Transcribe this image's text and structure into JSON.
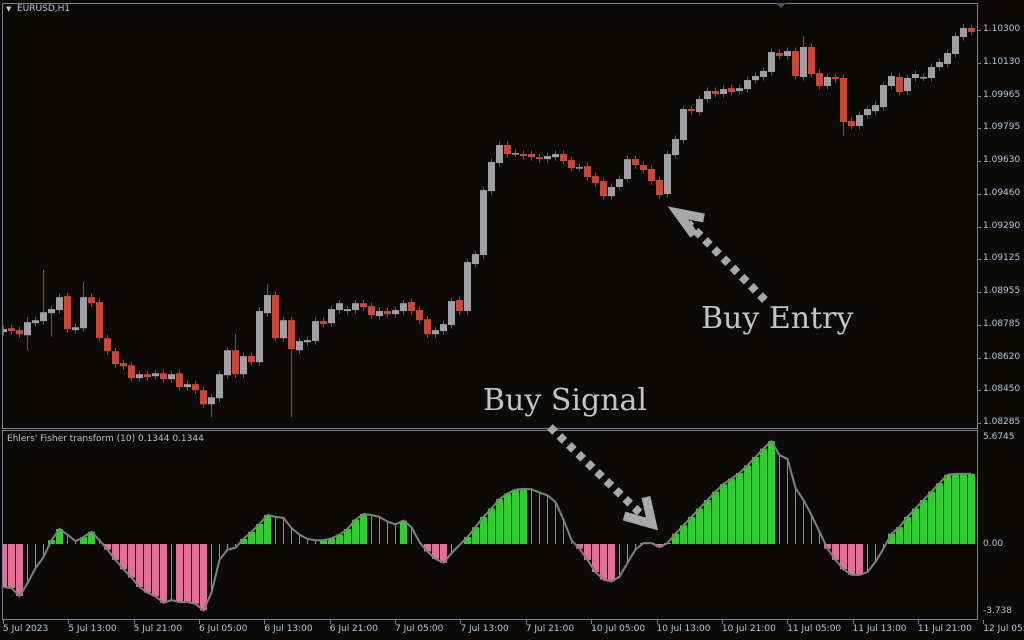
{
  "window": {
    "symbol_title": "EURUSD,H1",
    "menu_icon": "triangle-down-icon"
  },
  "indicator": {
    "title": "Ehlers' Fisher transform (10) 0.1344 0.1344"
  },
  "annotations": {
    "buy_entry": "Buy Entry",
    "buy_signal": "Buy Signal"
  },
  "colors": {
    "bull_candle": "#a0a0a4",
    "bear_candle": "#c8483a",
    "hist_up": "#33cc33",
    "hist_down": "#e07095",
    "signal_line": "#808080",
    "background": "#0c0a09"
  },
  "price_axis": [
    "1.10300",
    "1.10130",
    "1.09965",
    "1.09795",
    "1.09630",
    "1.09460",
    "1.09290",
    "1.09125",
    "1.08955",
    "1.08785",
    "1.08620",
    "1.08450",
    "1.08285"
  ],
  "indicator_axis": {
    "max": "5.6745",
    "zero": "0.00",
    "min": "-3.738"
  },
  "time_axis": [
    "5 Jul 2023",
    "5 Jul 13:00",
    "5 Jul 21:00",
    "6 Jul 05:00",
    "6 Jul 13:00",
    "6 Jul 21:00",
    "7 Jul 05:00",
    "7 Jul 13:00",
    "7 Jul 21:00",
    "10 Jul 05:00",
    "10 Jul 13:00",
    "10 Jul 21:00",
    "11 Jul 05:00",
    "11 Jul 13:00",
    "11 Jul 21:00",
    "12 Jul 05:00"
  ],
  "chart_data": {
    "type": "candlestick",
    "ylim": [
      1.08285,
      1.103
    ],
    "candles_open_close": [
      [
        1.08751,
        1.08766
      ],
      [
        1.08771,
        1.08756
      ],
      [
        1.08761,
        1.0874
      ],
      [
        1.08735,
        1.08802
      ],
      [
        1.08797,
        1.08812
      ],
      [
        1.08807,
        1.08853
      ],
      [
        1.08848,
        1.08869
      ],
      [
        1.08864,
        1.0893
      ],
      [
        1.08935,
        1.08766
      ],
      [
        1.08761,
        1.08776
      ],
      [
        1.08771,
        1.0893
      ],
      [
        1.0893,
        1.08899
      ],
      [
        1.08905,
        1.0872
      ],
      [
        1.0872,
        1.08653
      ],
      [
        1.08653,
        1.08587
      ],
      [
        1.08592,
        1.08576
      ],
      [
        1.08581,
        1.08515
      ],
      [
        1.08515,
        1.08535
      ],
      [
        1.08535,
        1.0852
      ],
      [
        1.08525,
        1.0854
      ],
      [
        1.0854,
        1.0851
      ],
      [
        1.0851,
        1.08535
      ],
      [
        1.0854,
        1.08469
      ],
      [
        1.08469,
        1.08484
      ],
      [
        1.08484,
        1.08453
      ],
      [
        1.08453,
        1.08381
      ],
      [
        1.08381,
        1.08417
      ],
      [
        1.08412,
        1.08535
      ],
      [
        1.0853,
        1.08658
      ],
      [
        1.08658,
        1.08535
      ],
      [
        1.08535,
        1.08628
      ],
      [
        1.08628,
        1.08597
      ],
      [
        1.08597,
        1.08859
      ],
      [
        1.08848,
        1.08941
      ],
      [
        1.08941,
        1.0872
      ],
      [
        1.0872,
        1.08812
      ],
      [
        1.08812,
        1.08664
      ],
      [
        1.08658,
        1.08705
      ],
      [
        1.08699,
        1.0871
      ],
      [
        1.08705,
        1.08807
      ],
      [
        1.08807,
        1.08792
      ],
      [
        1.08797,
        1.08869
      ],
      [
        1.08864,
        1.08899
      ],
      [
        1.08859,
        1.08869
      ],
      [
        1.08864,
        1.08899
      ],
      [
        1.08899,
        1.08879
      ],
      [
        1.08884,
        1.08838
      ],
      [
        1.08833,
        1.08859
      ],
      [
        1.08859,
        1.08843
      ],
      [
        1.08843,
        1.08864
      ],
      [
        1.08859,
        1.08899
      ],
      [
        1.08905,
        1.08859
      ],
      [
        1.08864,
        1.08812
      ],
      [
        1.08817,
        1.0874
      ],
      [
        1.0874,
        1.08761
      ],
      [
        1.08756,
        1.08792
      ],
      [
        1.08787,
        1.0891
      ],
      [
        1.08915,
        1.08859
      ],
      [
        1.08859,
        1.0911
      ],
      [
        1.091,
        1.09151
      ],
      [
        1.09146,
        1.09479
      ],
      [
        1.09474,
        1.09623
      ],
      [
        1.09618,
        1.0971
      ],
      [
        1.0971,
        1.09664
      ],
      [
        1.09666,
        1.09669
      ],
      [
        1.09664,
        1.09654
      ],
      [
        1.09664,
        1.09648
      ],
      [
        1.09648,
        1.09638
      ],
      [
        1.09638,
        1.09654
      ],
      [
        1.09648,
        1.09664
      ],
      [
        1.09664,
        1.09628
      ],
      [
        1.09633,
        1.09592
      ],
      [
        1.09595,
        1.09597
      ],
      [
        1.09602,
        1.09546
      ],
      [
        1.09551,
        1.09515
      ],
      [
        1.09525,
        1.09448
      ],
      [
        1.09448,
        1.09495
      ],
      [
        1.09495,
        1.09536
      ],
      [
        1.09536,
        1.09638
      ],
      [
        1.09638,
        1.09607
      ],
      [
        1.09607,
        1.09582
      ],
      [
        1.09587,
        1.09525
      ],
      [
        1.09531,
        1.09454
      ],
      [
        1.09459,
        1.09664
      ],
      [
        1.09659,
        1.09741
      ],
      [
        1.09736,
        1.09895
      ],
      [
        1.09895,
        1.09884
      ],
      [
        1.09879,
        1.09946
      ],
      [
        1.09946,
        1.09987
      ],
      [
        1.09987,
        1.09972
      ],
      [
        1.09972,
        1.09997
      ],
      [
        1.10002,
        1.09982
      ],
      [
        1.09987,
        1.10002
      ],
      [
        1.09997,
        1.10043
      ],
      [
        1.10043,
        1.10064
      ],
      [
        1.10059,
        1.1009
      ],
      [
        1.10085,
        1.10187
      ],
      [
        1.10182,
        1.10167
      ],
      [
        1.10167,
        1.10192
      ],
      [
        1.10192,
        1.10064
      ],
      [
        1.10059,
        1.10213
      ],
      [
        1.10213,
        1.10074
      ],
      [
        1.10079,
        1.10013
      ],
      [
        1.10013,
        1.10059
      ],
      [
        1.10059,
        1.10049
      ],
      [
        1.10054,
        1.09828
      ],
      [
        1.09833,
        1.09808
      ],
      [
        1.09808,
        1.09864
      ],
      [
        1.09864,
        1.09895
      ],
      [
        1.09884,
        1.09915
      ],
      [
        1.09905,
        1.10018
      ],
      [
        1.10013,
        1.10064
      ],
      [
        1.10059,
        1.09982
      ],
      [
        1.09987,
        1.10054
      ],
      [
        1.10054,
        1.10074
      ],
      [
        1.10057,
        1.10059
      ],
      [
        1.10054,
        1.1011
      ],
      [
        1.1011,
        1.10136
      ],
      [
        1.10126,
        1.10182
      ],
      [
        1.10177,
        1.10269
      ],
      [
        1.10264,
        1.1031
      ],
      [
        1.1031,
        1.1029
      ]
    ],
    "wick_extremes": {
      "3": [
        1.08828,
        1.08658
      ],
      "5": [
        1.09069,
        null
      ],
      "6": [
        null,
        1.08728
      ],
      "10": [
        1.09007,
        null
      ],
      "26": [
        null,
        1.08315
      ],
      "29": [
        1.0874,
        null
      ],
      "33": [
        1.08997,
        null
      ],
      "36": [
        null,
        1.08315
      ],
      "100": [
        1.10269,
        null
      ],
      "105": [
        null,
        1.09756
      ],
      "120": [
        1.10331,
        null
      ]
    },
    "fisher": {
      "ylim": [
        -3.738,
        5.6745
      ],
      "values": [
        -2.3,
        -2.35,
        -2.78,
        -2.1,
        -1.3,
        -0.7,
        0.2,
        0.8,
        0.5,
        0.15,
        0.37,
        0.65,
        0.2,
        -0.3,
        -0.85,
        -1.35,
        -1.8,
        -2.3,
        -2.6,
        -2.8,
        -3.15,
        -3.0,
        -3.1,
        -3.1,
        -3.2,
        -3.55,
        -2.6,
        -0.85,
        -0.3,
        -0.2,
        0.27,
        0.65,
        1.07,
        1.55,
        1.45,
        1.4,
        0.85,
        0.5,
        0.27,
        0.2,
        0.2,
        0.3,
        0.5,
        0.8,
        1.3,
        1.6,
        1.55,
        1.45,
        1.2,
        1.05,
        1.25,
        0.9,
        0.1,
        -0.4,
        -0.8,
        -1.0,
        -0.5,
        -0.05,
        0.37,
        0.9,
        1.45,
        1.9,
        2.4,
        2.7,
        2.9,
        2.95,
        2.93,
        2.75,
        2.6,
        2.25,
        1.3,
        0.2,
        -0.25,
        -0.85,
        -1.5,
        -1.9,
        -2.0,
        -1.75,
        -1.0,
        -0.3,
        0.05,
        0.05,
        -0.17,
        0.05,
        0.55,
        1.0,
        1.45,
        1.9,
        2.35,
        2.8,
        3.2,
        3.5,
        3.8,
        4.2,
        4.65,
        5.1,
        5.5,
        4.75,
        4.55,
        3.0,
        2.35,
        1.55,
        0.65,
        -0.25,
        -0.85,
        -1.35,
        -1.65,
        -1.65,
        -1.5,
        -0.95,
        -0.25,
        0.55,
        0.9,
        1.45,
        1.9,
        2.35,
        2.8,
        3.25,
        3.7,
        3.75,
        3.75,
        3.75
      ]
    }
  }
}
